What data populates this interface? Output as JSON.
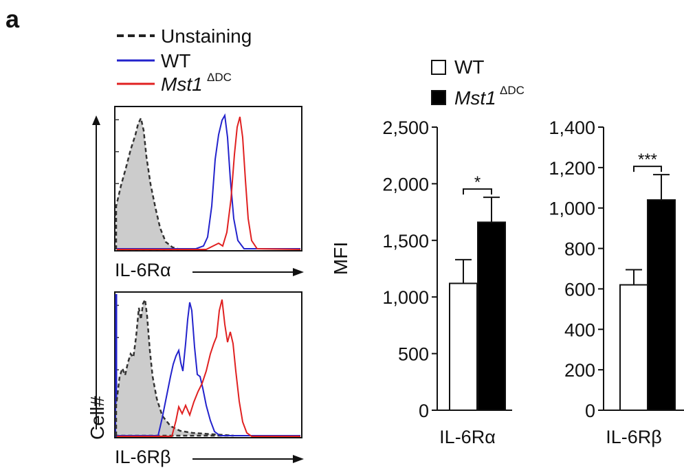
{
  "panel_label": "a",
  "legend_hist": {
    "items": [
      {
        "label": "Unstaining",
        "color": "#222222",
        "style": "dashed"
      },
      {
        "label": "WT",
        "color": "#2222cc",
        "style": "solid"
      },
      {
        "label": "Mst1",
        "superscript": "ΔDC",
        "color": "#e02020",
        "style": "solid"
      }
    ]
  },
  "legend_bar": {
    "items": [
      {
        "label": "WT",
        "fill": "#ffffff"
      },
      {
        "label": "Mst1",
        "superscript": "ΔDC",
        "fill": "#000000"
      }
    ]
  },
  "histograms": {
    "y_axis_label": "Cell#",
    "top_xlabel": "IL-6Rα",
    "bottom_xlabel": "IL-6Rβ"
  },
  "chart_data": [
    {
      "type": "bar",
      "categories": [
        "WT",
        "Mst1ΔDC"
      ],
      "values": [
        1120,
        1660
      ],
      "errors": [
        210,
        220
      ],
      "ylim": [
        0,
        2500
      ],
      "yticks": [
        0,
        500,
        1000,
        1500,
        2000,
        2500
      ],
      "ytick_labels": [
        "0",
        "500",
        "1,000",
        "1,500",
        "2,000",
        "2,500"
      ],
      "ylabel": "MFI",
      "xlabel": "IL-6Rα",
      "significance": "*"
    },
    {
      "type": "bar",
      "categories": [
        "WT",
        "Mst1ΔDC"
      ],
      "values": [
        620,
        1040
      ],
      "errors": [
        75,
        125
      ],
      "ylim": [
        0,
        1400
      ],
      "yticks": [
        0,
        200,
        400,
        600,
        800,
        1000,
        1200,
        1400
      ],
      "ytick_labels": [
        "0",
        "200",
        "400",
        "600",
        "800",
        "1,000",
        "1,200",
        "1,400"
      ],
      "ylabel": "",
      "xlabel": "IL-6Rβ",
      "significance": "***"
    }
  ]
}
